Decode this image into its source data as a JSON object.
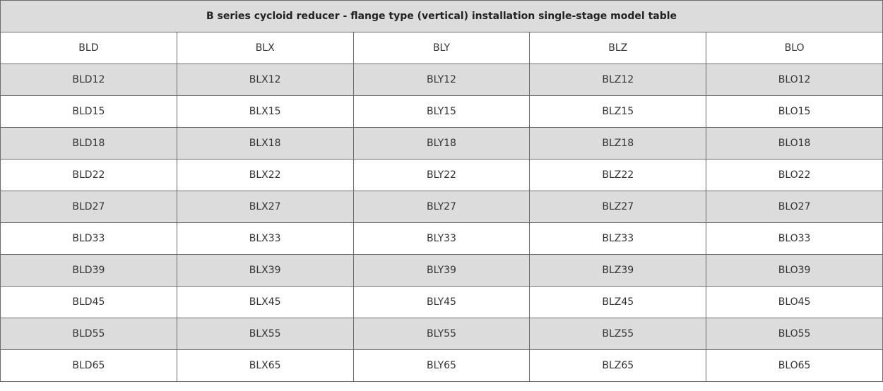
{
  "table": {
    "title": "B series cycloid reducer - flange type (vertical) installation single-stage model table",
    "header": [
      "BLD",
      "BLX",
      "BLY",
      "BLZ",
      "BLO"
    ],
    "rows": [
      [
        "BLD12",
        "BLX12",
        "BLY12",
        "BLZ12",
        "BLO12"
      ],
      [
        "BLD15",
        "BLX15",
        "BLY15",
        "BLZ15",
        "BLO15"
      ],
      [
        "BLD18",
        "BLX18",
        "BLY18",
        "BLZ18",
        "BLO18"
      ],
      [
        "BLD22",
        "BLX22",
        "BLY22",
        "BLZ22",
        "BLO22"
      ],
      [
        "BLD27",
        "BLX27",
        "BLY27",
        "BLZ27",
        "BLO27"
      ],
      [
        "BLD33",
        "BLX33",
        "BLY33",
        "BLZ33",
        "BLO33"
      ],
      [
        "BLD39",
        "BLX39",
        "BLY39",
        "BLZ39",
        "BLO39"
      ],
      [
        "BLD45",
        "BLX45",
        "BLY45",
        "BLZ45",
        "BLO45"
      ],
      [
        "BLD55",
        "BLX55",
        "BLY55",
        "BLZ55",
        "BLO55"
      ],
      [
        "BLD65",
        "BLX65",
        "BLY65",
        "BLZ65",
        "BLO65"
      ]
    ]
  }
}
